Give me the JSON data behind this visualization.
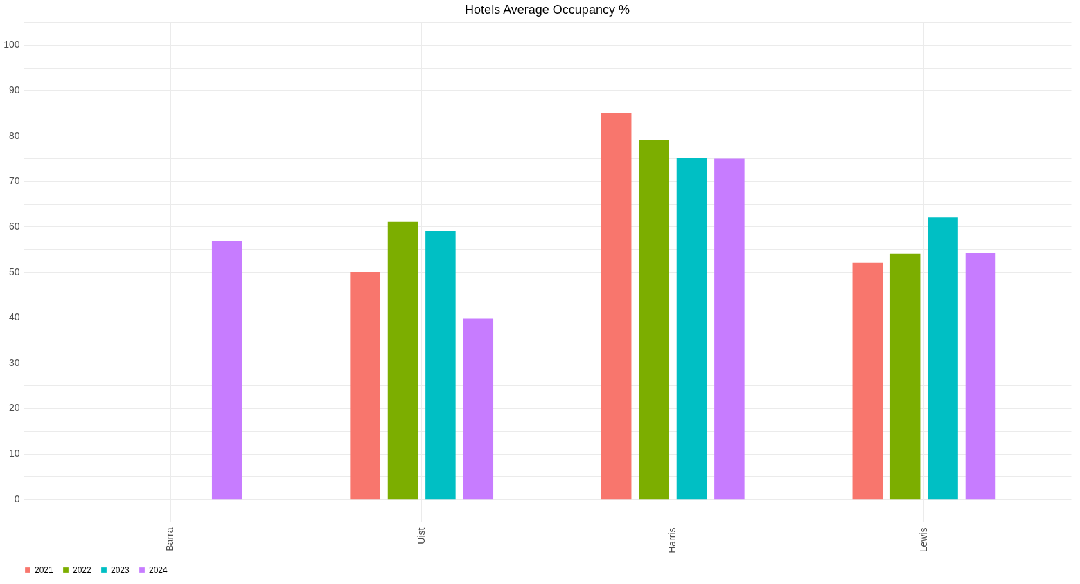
{
  "chart_data": {
    "type": "bar",
    "title": "Hotels Average Occupancy %",
    "categories": [
      "Barra",
      "Uist",
      "Harris",
      "Lewis"
    ],
    "series": [
      {
        "name": "2021",
        "color": "#f8766d",
        "values": [
          null,
          50,
          85,
          52
        ]
      },
      {
        "name": "2022",
        "color": "#7cae00",
        "values": [
          null,
          61,
          79,
          54
        ]
      },
      {
        "name": "2023",
        "color": "#00bfc4",
        "values": [
          null,
          59,
          75,
          62
        ]
      },
      {
        "name": "2024",
        "color": "#c77cff",
        "values": [
          56.7,
          39.7,
          74.9,
          54.2
        ]
      }
    ],
    "ylim": [
      -5,
      105
    ],
    "yticks": [
      {
        "value": -5,
        "label": null
      },
      0,
      {
        "value": 5,
        "label": null
      },
      10,
      {
        "value": 15,
        "label": null
      },
      20,
      {
        "value": 25,
        "label": null
      },
      30,
      {
        "value": 35,
        "label": null
      },
      40,
      {
        "value": 45,
        "label": null
      },
      50,
      {
        "value": 55,
        "label": null
      },
      60,
      {
        "value": 65,
        "label": null
      },
      70,
      {
        "value": 75,
        "label": null
      },
      80,
      {
        "value": 85,
        "label": null
      },
      90,
      {
        "value": 95,
        "label": null
      },
      100,
      {
        "value": 105,
        "label": null
      }
    ],
    "grid": true,
    "legend": "bottom"
  }
}
